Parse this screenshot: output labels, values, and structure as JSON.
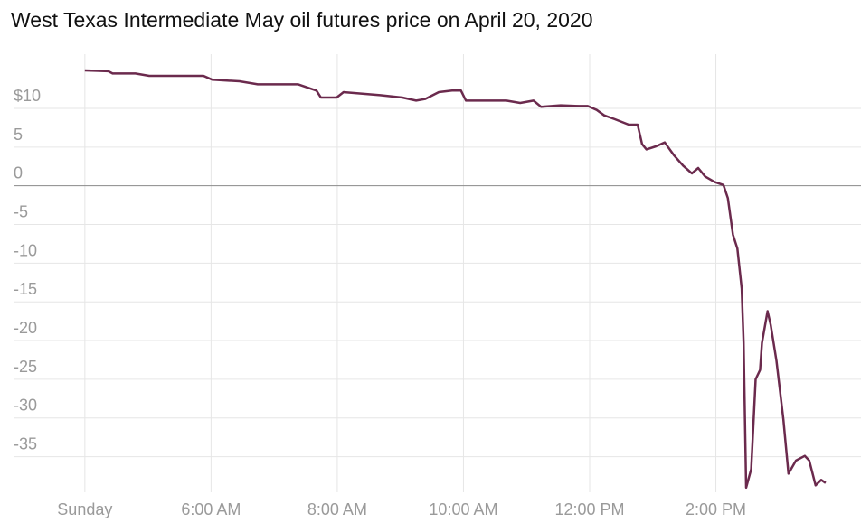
{
  "chart_data": {
    "type": "line",
    "title": "West Texas Intermediate May oil futures price on April 20, 2020",
    "color": "#6b2a4d",
    "grid": true,
    "x": [
      4.0,
      4.37,
      4.44,
      4.8,
      5.02,
      5.52,
      5.88,
      6.02,
      6.45,
      6.74,
      7.38,
      7.67,
      7.74,
      7.99,
      8.1,
      8.68,
      9.03,
      9.25,
      9.39,
      9.61,
      9.82,
      9.96,
      10.04,
      10.32,
      10.68,
      10.9,
      11.11,
      11.23,
      11.54,
      11.83,
      11.97,
      12.11,
      12.23,
      12.4,
      12.62,
      12.76,
      12.83,
      12.9,
      13.05,
      13.19,
      13.33,
      13.48,
      13.62,
      13.72,
      13.83,
      13.98,
      14.12,
      14.19,
      14.27,
      14.34,
      14.41,
      14.44,
      14.48,
      14.56,
      14.63,
      14.7,
      14.73,
      14.82,
      14.87,
      14.96,
      15.07,
      15.15,
      15.27,
      15.41,
      15.48,
      15.58,
      15.67,
      15.74
    ],
    "values": [
      14.9,
      14.8,
      14.5,
      14.5,
      14.2,
      14.2,
      14.2,
      13.7,
      13.5,
      13.1,
      13.1,
      12.3,
      11.4,
      11.4,
      12.1,
      11.7,
      11.4,
      11.0,
      11.2,
      12.1,
      12.3,
      12.3,
      11.0,
      11.0,
      11.0,
      10.7,
      11.0,
      10.2,
      10.4,
      10.3,
      10.3,
      9.8,
      9.1,
      8.6,
      7.9,
      7.9,
      5.4,
      4.7,
      5.1,
      5.6,
      4.0,
      2.6,
      1.6,
      2.3,
      1.2,
      0.5,
      0.1,
      -1.6,
      -6.3,
      -8.1,
      -13.3,
      -20.3,
      -39.0,
      -36.6,
      -25.0,
      -23.8,
      -20.3,
      -16.2,
      -18.0,
      -22.6,
      -30.2,
      -37.2,
      -35.5,
      -34.9,
      -35.5,
      -38.7,
      -38.0,
      -38.4
    ],
    "xlim": [
      2.87,
      16.3
    ],
    "xticks": [
      {
        "value": 4,
        "label": "Sunday"
      },
      {
        "value": 6,
        "label": "6:00 AM"
      },
      {
        "value": 8,
        "label": "8:00 AM"
      },
      {
        "value": 10,
        "label": "10:00 AM"
      },
      {
        "value": 12,
        "label": "12:00 PM"
      },
      {
        "value": 14,
        "label": "2:00 PM"
      }
    ],
    "ylim": [
      -39.6,
      17
    ],
    "yticks": [
      {
        "value": 10,
        "label": "$10"
      },
      5,
      0,
      -5,
      -10,
      -15,
      -20,
      -25,
      -30,
      -35
    ]
  }
}
